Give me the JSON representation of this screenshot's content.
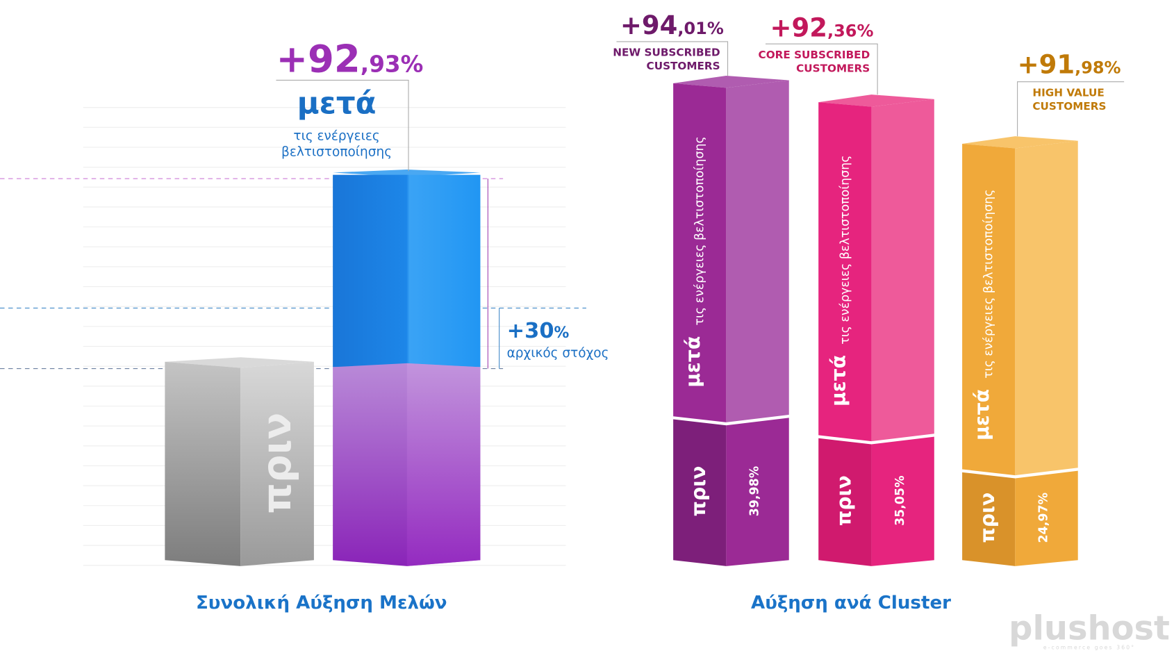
{
  "overview": {
    "headline": {
      "main": "+92",
      "fraction": ",93%"
    },
    "after_label": "μετά",
    "after_sub": [
      "τις ενέργειες",
      "βελτιστοποίησης"
    ],
    "target": {
      "main": "+30",
      "fraction": "%",
      "label": "αρχικός στόχος"
    },
    "before_label": "πριν",
    "title": "Συνολική Αύξηση Μελών"
  },
  "clusters": {
    "items": [
      {
        "headline": {
          "main": "+94",
          "fraction": ",01%"
        },
        "name": [
          "NEW SUBSCRIBED",
          "CUSTOMERS"
        ],
        "after_label": "μετά",
        "after_sub": "τις ενέργειες βελτιστοποίησης",
        "before_label": "πριν",
        "before_value": "39,98%"
      },
      {
        "headline": {
          "main": "+92",
          "fraction": ",36%"
        },
        "name": [
          "CORE SUBSCRIBED",
          "CUSTOMERS"
        ],
        "after_label": "μετά",
        "after_sub": "τις ενέργειες βελτιστοποίησης",
        "before_label": "πριν",
        "before_value": "35,05%"
      },
      {
        "headline": {
          "main": "+91",
          "fraction": ",98%"
        },
        "name": [
          "HIGH VALUE",
          "CUSTOMERS"
        ],
        "after_label": "μετά",
        "after_sub": "τις ενέργειες βελτιστοποίησης",
        "before_label": "πριν",
        "before_value": "24,97%"
      }
    ],
    "title": "Αύξηση ανά Cluster"
  },
  "logo": {
    "name": "plushost",
    "tagline": "e-commerce goes 360°"
  }
}
